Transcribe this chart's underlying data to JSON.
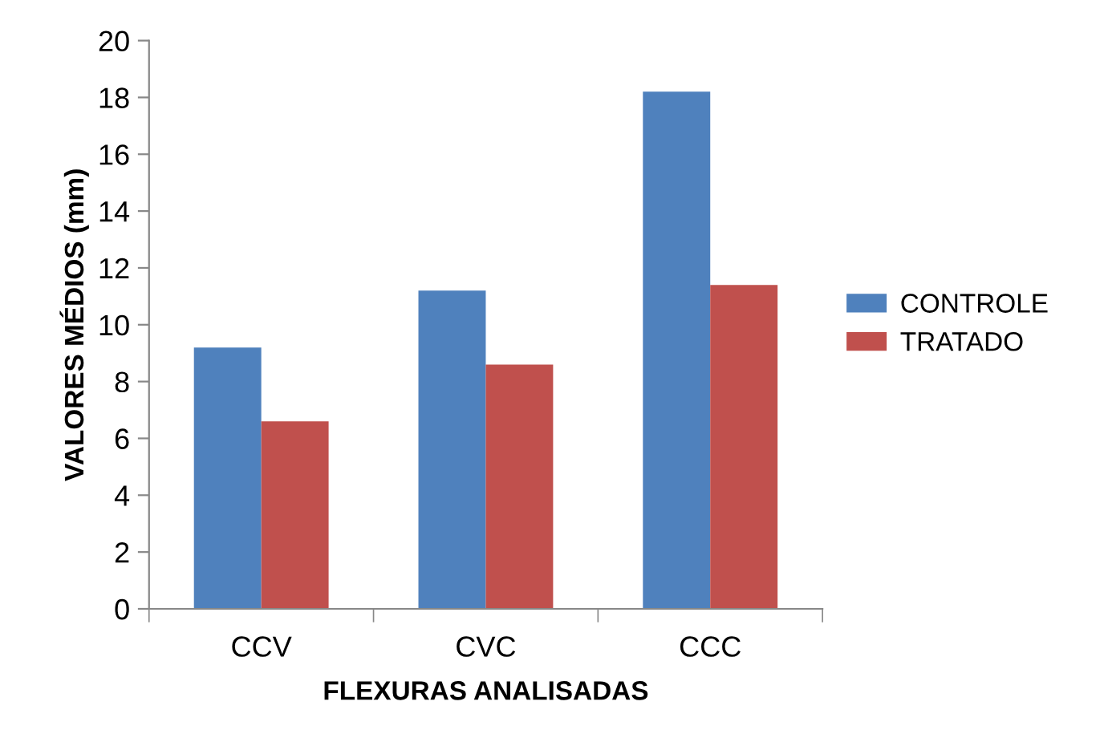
{
  "chart_data": {
    "type": "bar",
    "xlabel": "FLEXURAS ANALISADAS",
    "ylabel": "VALORES MÉDIOS (mm)",
    "categories": [
      "CCV",
      "CVC",
      "CCC"
    ],
    "series": [
      {
        "name": "CONTROLE",
        "color": "#4f81bd",
        "values": [
          9.2,
          11.2,
          18.2
        ]
      },
      {
        "name": "TRATADO",
        "color": "#c0504d",
        "values": [
          6.6,
          8.6,
          11.4
        ]
      }
    ],
    "ylim": [
      0,
      20
    ],
    "yticks": [
      0,
      2,
      4,
      6,
      8,
      10,
      12,
      14,
      16,
      18,
      20
    ],
    "grid": false,
    "legend": "right"
  }
}
